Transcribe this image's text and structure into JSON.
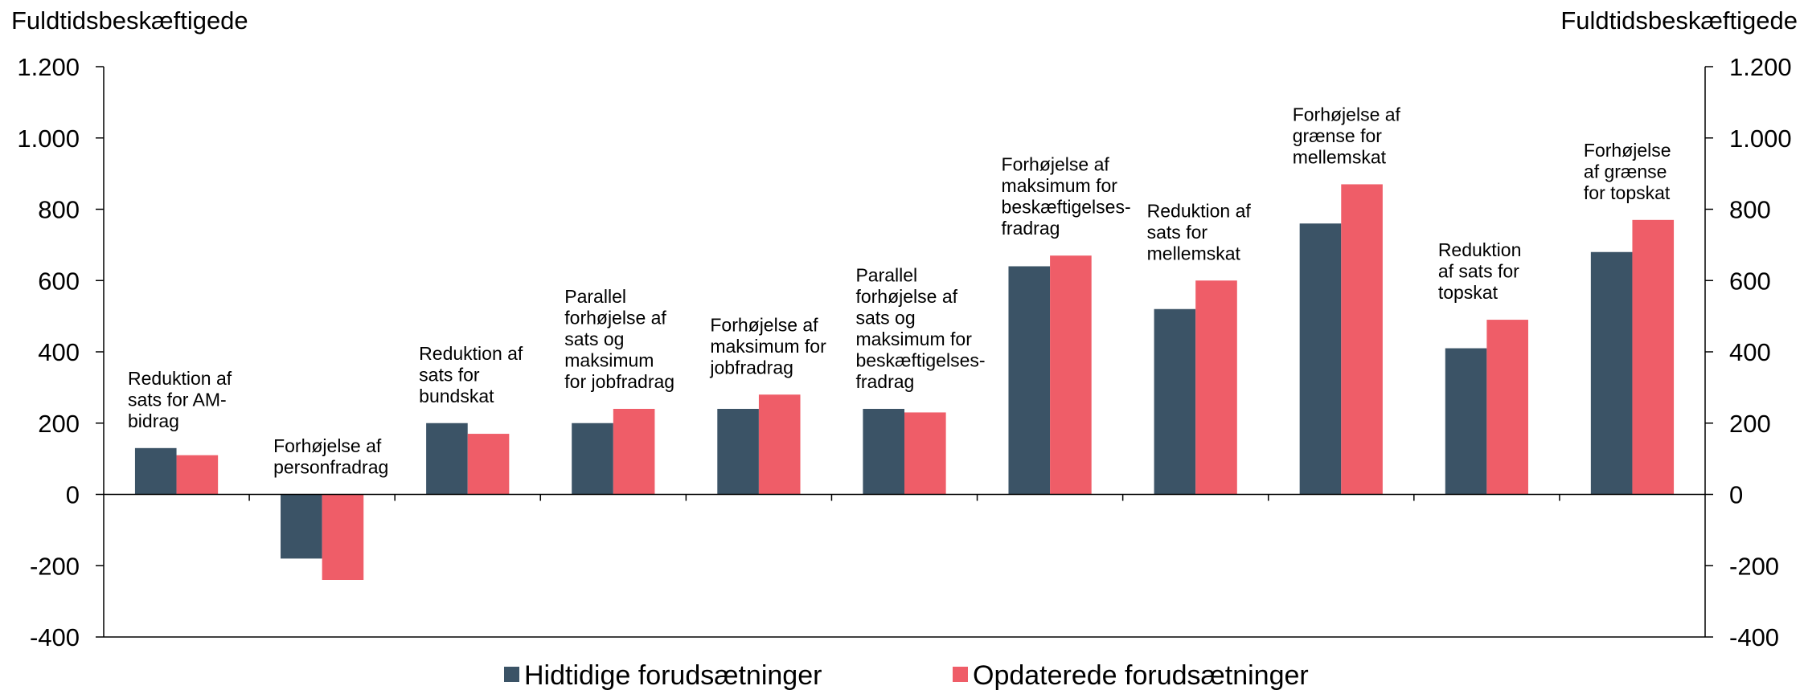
{
  "chart_data": {
    "type": "bar",
    "y_axis_label": "Fuldtidsbeskæftigede",
    "y2_axis_label": "Fuldtidsbeskæftigede",
    "categories": [
      [
        "Reduktion af",
        "sats for AM-",
        "bidrag"
      ],
      [
        "Forhøjelse af",
        "personfradrag"
      ],
      [
        "Reduktion af",
        "sats for",
        "bundskat"
      ],
      [
        "Parallel",
        "forhøjelse af",
        "sats og",
        "maksimum",
        "for jobfradrag"
      ],
      [
        "Forhøjelse af",
        "maksimum for",
        "jobfradrag"
      ],
      [
        "Parallel",
        "forhøjelse af",
        "sats og",
        "maksimum for",
        "beskæftigelses-",
        "fradrag"
      ],
      [
        "Forhøjelse af",
        "maksimum for",
        "beskæftigelses-",
        "fradrag"
      ],
      [
        "Reduktion af",
        "sats for",
        "mellemskat"
      ],
      [
        "Forhøjelse af",
        "grænse for",
        "mellemskat"
      ],
      [
        "Reduktion",
        "af sats for",
        "topskat"
      ],
      [
        "Forhøjelse",
        "af grænse",
        "for topskat"
      ]
    ],
    "series": [
      {
        "name": "Hidtidige forudsætninger",
        "color": "#3b5366",
        "values": [
          130,
          -180,
          200,
          200,
          240,
          240,
          640,
          520,
          760,
          410,
          680
        ]
      },
      {
        "name": "Opdaterede forudsætninger",
        "color": "#ef5d68",
        "values": [
          110,
          -240,
          170,
          240,
          280,
          230,
          670,
          600,
          870,
          490,
          770
        ]
      }
    ],
    "ylim": [
      -400,
      1200
    ],
    "yticks": [
      -400,
      -200,
      0,
      200,
      400,
      600,
      800,
      {
        "value": 1000,
        "label": "1.000"
      },
      {
        "value": 1200,
        "label": "1.200"
      }
    ],
    "y2lim": [
      -400,
      1200
    ],
    "y2ticks": [
      -400,
      -200,
      0,
      200,
      400,
      600,
      800,
      {
        "value": 1000,
        "label": "1.000"
      },
      {
        "value": 1200,
        "label": "1.200"
      }
    ],
    "legend": "bottom"
  }
}
